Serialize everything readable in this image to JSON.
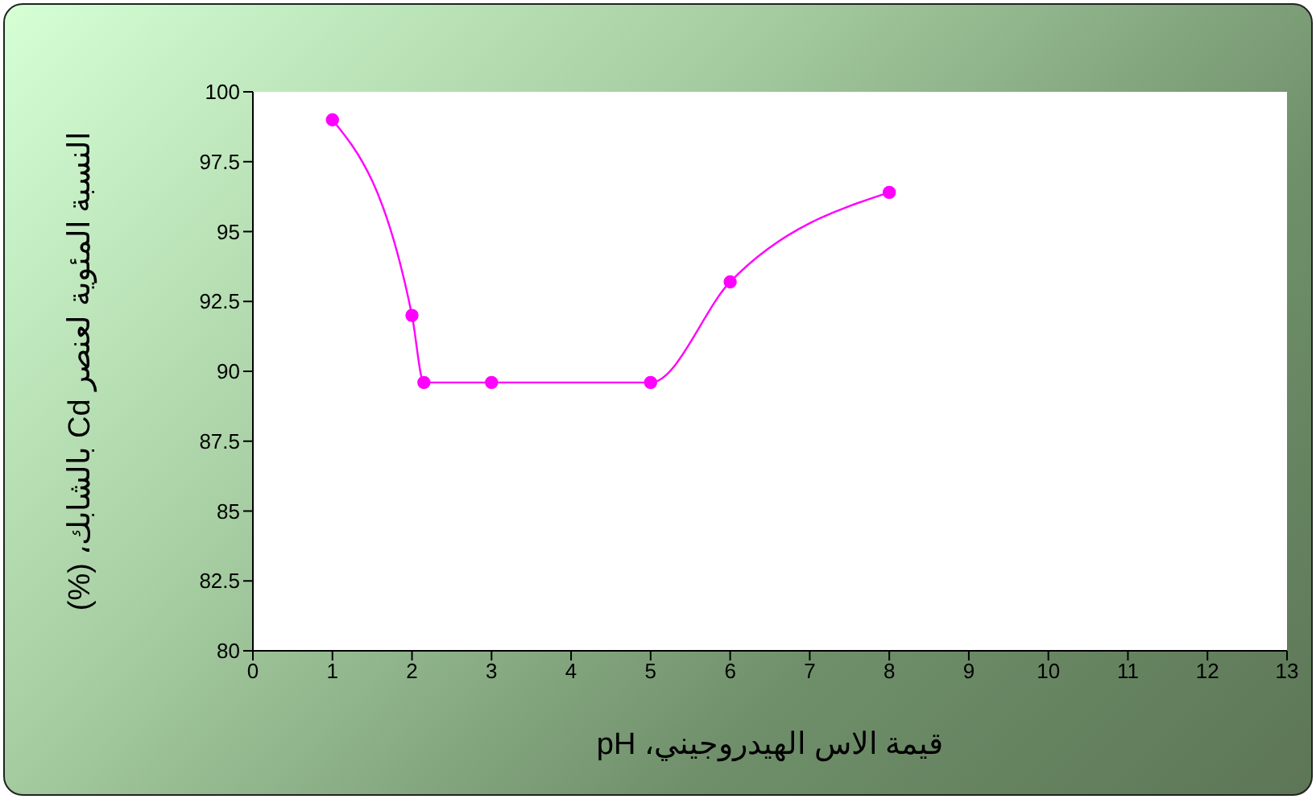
{
  "chart_data": {
    "type": "line",
    "xlabel": "قيمة الاس الهيدروجيني، pH",
    "ylabel": "النسبة المئوية لعنصر Cd بالشابك، (%)",
    "x": [
      1,
      2,
      2.15,
      3,
      5,
      6,
      8
    ],
    "series": [
      {
        "color": "#ff00ff",
        "values": [
          99,
          92,
          89.6,
          89.6,
          89.6,
          93.2,
          96.4
        ]
      }
    ],
    "xlim": [
      0,
      13
    ],
    "xticks": [
      0,
      1,
      2,
      3,
      4,
      5,
      6,
      7,
      8,
      9,
      10,
      11,
      12,
      13
    ],
    "ylim": [
      80,
      100
    ],
    "yticks": [
      80,
      82.5,
      85,
      87.5,
      90,
      92.5,
      95,
      97.5,
      100
    ],
    "marker": "circle",
    "line_style": "solid"
  }
}
